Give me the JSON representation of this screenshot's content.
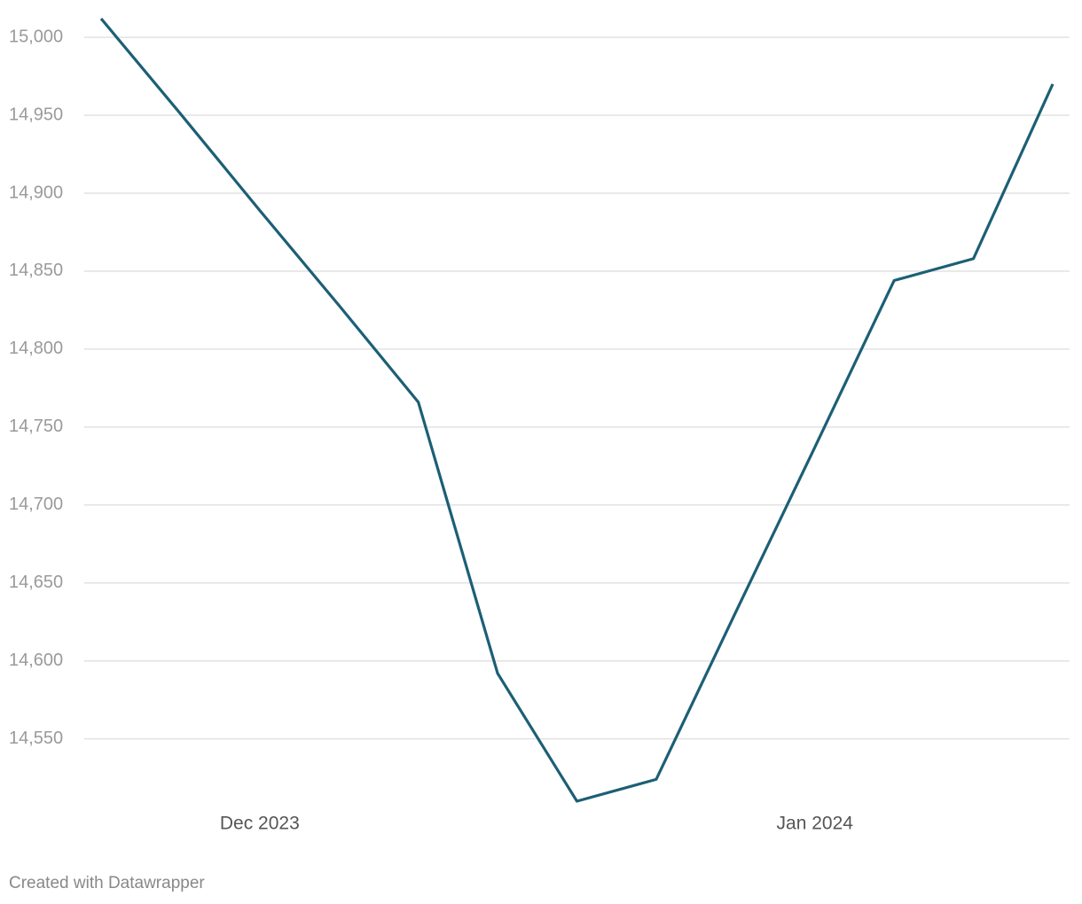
{
  "chart_data": {
    "type": "line",
    "categories": [
      null,
      null,
      "Dec 2023",
      null,
      null,
      null,
      null,
      null,
      null,
      "Jan 2024",
      null,
      null,
      null
    ],
    "series": [
      {
        "name": null,
        "color": "#1c5f75",
        "values": [
          15012,
          14951,
          14889,
          14828,
          14766,
          14592,
          14510,
          14524,
          14631,
          14737,
          14844,
          14858,
          14970
        ]
      }
    ],
    "ylim": [
      14510,
      15012
    ],
    "yticks": [
      {
        "value": 14550,
        "label": "14,550"
      },
      {
        "value": 14600,
        "label": "14,600"
      },
      {
        "value": 14650,
        "label": "14,650"
      },
      {
        "value": 14700,
        "label": "14,700"
      },
      {
        "value": 14750,
        "label": "14,750"
      },
      {
        "value": 14800,
        "label": "14,800"
      },
      {
        "value": 14850,
        "label": "14,850"
      },
      {
        "value": 14900,
        "label": "14,900"
      },
      {
        "value": 14950,
        "label": "14,950"
      },
      {
        "value": 15000,
        "label": "15,000"
      }
    ],
    "grid": true,
    "footer": "Created with Datawrapper"
  }
}
